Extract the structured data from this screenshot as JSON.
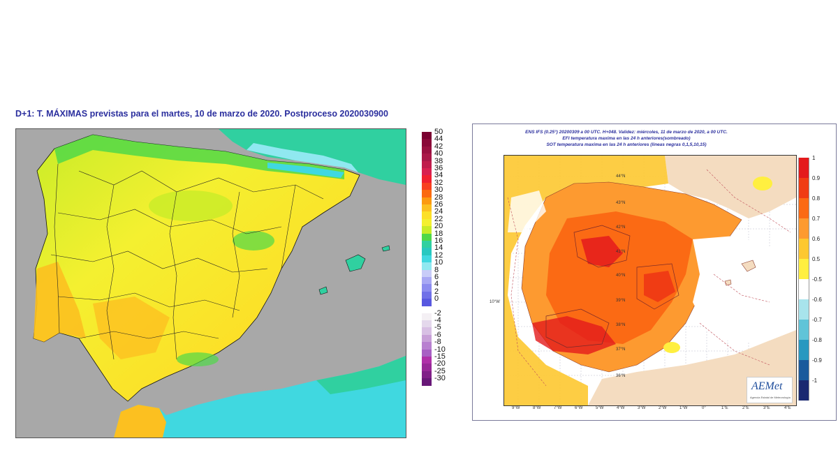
{
  "left": {
    "title": "D+1: T. MÁXIMAS previstas para el martes, 10 de marzo de 2020. Postproceso 2020030900",
    "legend": [
      {
        "label": "50",
        "color": "#7a0030"
      },
      {
        "label": "44",
        "color": "#8a0838"
      },
      {
        "label": "42",
        "color": "#9a1040"
      },
      {
        "label": "40",
        "color": "#aa1848"
      },
      {
        "label": "38",
        "color": "#c01c4c"
      },
      {
        "label": "36",
        "color": "#d82050"
      },
      {
        "label": "34",
        "color": "#f02030"
      },
      {
        "label": "32",
        "color": "#f84020"
      },
      {
        "label": "30",
        "color": "#fb6a10"
      },
      {
        "label": "28",
        "color": "#fc9a10"
      },
      {
        "label": "26",
        "color": "#fcc020"
      },
      {
        "label": "24",
        "color": "#fce028"
      },
      {
        "label": "22",
        "color": "#f4f030"
      },
      {
        "label": "20",
        "color": "#c8ec28"
      },
      {
        "label": "18",
        "color": "#50d848"
      },
      {
        "label": "16",
        "color": "#30d0a0"
      },
      {
        "label": "14",
        "color": "#28c8c0"
      },
      {
        "label": "12",
        "color": "#40d8e0"
      },
      {
        "label": "10",
        "color": "#90e8f0"
      },
      {
        "label": "8",
        "color": "#c8ccf8"
      },
      {
        "label": "6",
        "color": "#a8a8f4"
      },
      {
        "label": "4",
        "color": "#8c8cf0"
      },
      {
        "label": "2",
        "color": "#7070e8"
      },
      {
        "label": "0",
        "color": "#5858e0"
      },
      {
        "label": "-2",
        "color": "#f4f0f4"
      },
      {
        "label": "-4",
        "color": "#e4d8ec"
      },
      {
        "label": "-5",
        "color": "#d8c0e4"
      },
      {
        "label": "-6",
        "color": "#c8a0d8"
      },
      {
        "label": "-8",
        "color": "#b880d0"
      },
      {
        "label": "-10",
        "color": "#a860c4"
      },
      {
        "label": "-15",
        "color": "#b030a8"
      },
      {
        "label": "-20",
        "color": "#982898"
      },
      {
        "label": "-25",
        "color": "#802088"
      },
      {
        "label": "-30",
        "color": "#681878"
      }
    ]
  },
  "right": {
    "title_lines": [
      "ENS IFS (0.25°) 20200309 a 00 UTC.  H+048. Validez: miércoles, 11 de marzo de 2020,  a  00 UTC.",
      "EFI temperatura maxima en las 24 h anteriores(sombreado)",
      "SOT temperatura maxima en las 24 h anteriores (lineas negras 0,1,5,10,15)"
    ],
    "legend": [
      {
        "label": "1",
        "color": "#e41a1c"
      },
      {
        "label": "0.9",
        "color": "#f03c14"
      },
      {
        "label": "0.8",
        "color": "#fb6a14"
      },
      {
        "label": "0.7",
        "color": "#fd9a30"
      },
      {
        "label": "0.6",
        "color": "#fdc830"
      },
      {
        "label": "0.5",
        "color": "#ffef40"
      },
      {
        "label": "-0.5",
        "color": "#ffffff"
      },
      {
        "label": "-0.6",
        "color": "#a8e4ec"
      },
      {
        "label": "-0.7",
        "color": "#60c4d8"
      },
      {
        "label": "-0.8",
        "color": "#2898c0"
      },
      {
        "label": "-0.9",
        "color": "#1a5a9c"
      },
      {
        "label": "-1",
        "color": "#1a2870"
      }
    ],
    "lon_labels": [
      "9°W",
      "8°W",
      "7°W",
      "6°W",
      "5°W",
      "4°W",
      "3°W",
      "2°W",
      "1°W",
      "0°",
      "1°E",
      "2°E",
      "3°E",
      "4°E"
    ],
    "lat_labels": [
      "44°N",
      "43°N",
      "42°N",
      "41°N",
      "40°N",
      "39°N",
      "38°N",
      "37°N",
      "36°N"
    ],
    "side_lon_label": "10°W",
    "logo_text": "AEMet",
    "logo_subtext": "Agencia Estatal de Meteorología"
  }
}
